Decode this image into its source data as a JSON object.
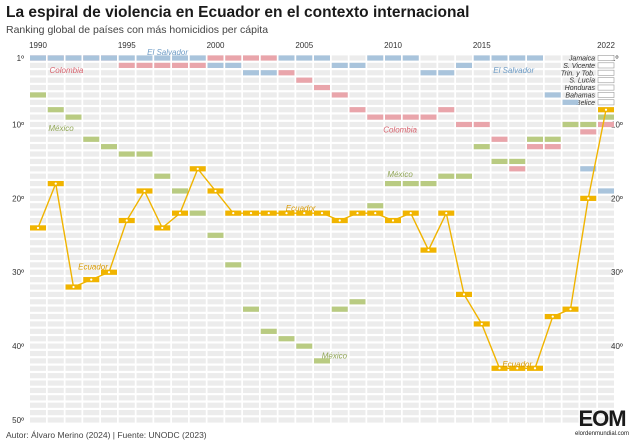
{
  "title": "La espiral de violencia en Ecuador en el contexto internacional",
  "subtitle": "Ranking global de países con más homicidios per cápita",
  "footer": "Autor: Álvaro Merino (2024) | Fuente: UNODC (2023)",
  "logo": {
    "mark": "EOM",
    "text": "elordenmundial.com"
  },
  "colors": {
    "Ecuador": "#f0b400",
    "Colombia": "#e9a5ab",
    "El Salvador": "#a9c4dc",
    "México": "#b9cb82",
    "others": "#bdbdbd",
    "grid": "#ececec"
  },
  "chart_data": {
    "type": "line",
    "x_ticks": [
      1990,
      1995,
      2000,
      2005,
      2010,
      2015,
      2022
    ],
    "y_ticks": [
      "1º",
      "10º",
      "20º",
      "30º",
      "40º",
      "50º"
    ],
    "y_right_ticks": [
      "1º",
      "10º",
      "20º",
      "30º",
      "40º"
    ],
    "xlim": [
      1990,
      2022
    ],
    "ylim": [
      1,
      50
    ],
    "y_reversed": true,
    "legend_2022": [
      "Jamaica",
      "S. Vicente",
      "Trin. y Tob.",
      "S. Lucía",
      "Honduras",
      "Bahamas",
      "Belice"
    ],
    "labels": {
      "Colombia": [
        {
          "text": "Colombia",
          "x": 1991.6,
          "y": 2.6
        },
        {
          "text": "Colombia",
          "x": 2010.4,
          "y": 10.7
        }
      ],
      "El Salvador": [
        {
          "text": "El Salvador",
          "x": 1997.3,
          "y": 0.2
        },
        {
          "text": "El Salvador",
          "x": 2016.8,
          "y": 2.6
        }
      ],
      "México": [
        {
          "text": "México",
          "x": 1991.3,
          "y": 10.5
        },
        {
          "text": "México",
          "x": 2010.4,
          "y": 16.7
        },
        {
          "text": "México",
          "x": 2006.7,
          "y": 41.3
        }
      ],
      "Ecuador": [
        {
          "text": "Ecuador",
          "x": 1993.1,
          "y": 29.2
        },
        {
          "text": "Ecuador",
          "x": 2004.8,
          "y": 21.3
        },
        {
          "text": "Ecuador",
          "x": 2017.0,
          "y": 42.4
        }
      ]
    },
    "series": [
      {
        "name": "Ecuador",
        "emphasis": true,
        "x": [
          1990,
          1991,
          1992,
          1993,
          1994,
          1995,
          1996,
          1997,
          1998,
          1999,
          2000,
          2001,
          2002,
          2003,
          2004,
          2005,
          2006,
          2007,
          2008,
          2009,
          2010,
          2011,
          2012,
          2013,
          2014,
          2015,
          2016,
          2017,
          2018,
          2019,
          2020,
          2021,
          2022
        ],
        "y": [
          24,
          18,
          32,
          31,
          30,
          23,
          19,
          24,
          22,
          16,
          19,
          22,
          22,
          22,
          22,
          22,
          22,
          23,
          22,
          22,
          23,
          22,
          27,
          22,
          33,
          37,
          43,
          43,
          43,
          36,
          35,
          20,
          8
        ]
      },
      {
        "name": "Colombia",
        "x": [
          1990,
          1991,
          1992,
          1993,
          1994,
          1995,
          1996,
          1997,
          1998,
          1999,
          2000,
          2001,
          2002,
          2003,
          2004,
          2005,
          2006,
          2007,
          2008,
          2009,
          2010,
          2011,
          2012,
          2013,
          2014,
          2015,
          2016,
          2017,
          2018,
          2019,
          2020,
          2021,
          2022
        ],
        "y": [
          1,
          1,
          1,
          1,
          1,
          2,
          2,
          2,
          2,
          2,
          1,
          1,
          1,
          1,
          3,
          4,
          5,
          6,
          8,
          9,
          9,
          9,
          9,
          8,
          10,
          10,
          12,
          16,
          13,
          13,
          10,
          11,
          10
        ]
      },
      {
        "name": "El Salvador",
        "x": [
          1990,
          1991,
          1992,
          1993,
          1994,
          1995,
          1996,
          1997,
          1998,
          1999,
          2000,
          2001,
          2002,
          2003,
          2004,
          2005,
          2006,
          2007,
          2008,
          2009,
          2010,
          2011,
          2012,
          2013,
          2014,
          2015,
          2016,
          2017,
          2018,
          2019,
          2020,
          2021,
          2022
        ],
        "y": [
          1,
          1,
          1,
          1,
          1,
          1,
          1,
          1,
          1,
          1,
          2,
          2,
          3,
          3,
          1,
          1,
          1,
          2,
          2,
          1,
          1,
          1,
          3,
          3,
          2,
          1,
          1,
          1,
          1,
          6,
          7,
          16,
          19
        ]
      },
      {
        "name": "México",
        "x": [
          1990,
          1991,
          1992,
          1993,
          1994,
          1995,
          1996,
          1997,
          1998,
          1999,
          2000,
          2001,
          2002,
          2003,
          2004,
          2005,
          2006,
          2007,
          2008,
          2009,
          2010,
          2011,
          2012,
          2013,
          2014,
          2015,
          2016,
          2017,
          2018,
          2019,
          2020,
          2021,
          2022
        ],
        "y": [
          6,
          8,
          9,
          12,
          13,
          14,
          14,
          17,
          19,
          22,
          25,
          29,
          35,
          38,
          39,
          40,
          42,
          35,
          34,
          21,
          18,
          18,
          18,
          17,
          17,
          13,
          15,
          15,
          12,
          12,
          10,
          10,
          9
        ]
      }
    ]
  }
}
